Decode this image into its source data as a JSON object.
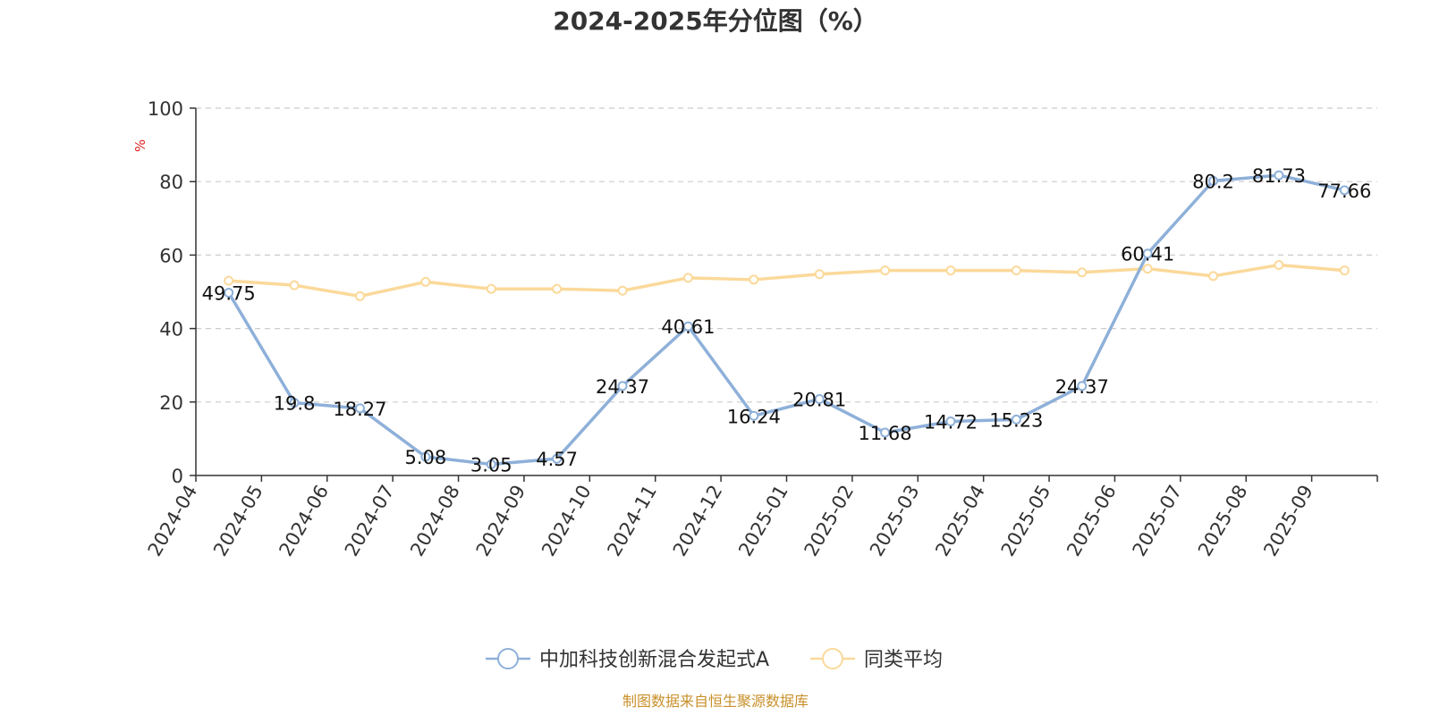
{
  "chart_data": {
    "type": "line",
    "title": "2024-2025年分位图（%）",
    "ylabel": "%",
    "xlabel": "",
    "ylim": [
      0,
      100
    ],
    "yticks": [
      0,
      20,
      40,
      60,
      80,
      100
    ],
    "grid": true,
    "legend_position": "bottom-center",
    "categories": [
      "2024-04",
      "2024-05",
      "2024-06",
      "2024-07",
      "2024-08",
      "2024-09",
      "2024-10",
      "2024-11",
      "2024-12",
      "2025-01",
      "2025-02",
      "2025-03",
      "2025-04",
      "2025-05",
      "2025-06",
      "2025-07",
      "2025-08",
      "2025-09"
    ],
    "series": [
      {
        "name": "中加科技创新混合发起式A",
        "color": "#8eb0d9",
        "show_labels": true,
        "values": [
          49.75,
          19.8,
          18.27,
          5.08,
          3.05,
          4.57,
          24.37,
          40.61,
          16.24,
          20.81,
          11.68,
          14.72,
          15.23,
          24.37,
          60.41,
          80.2,
          81.73,
          77.66
        ]
      },
      {
        "name": "同类平均",
        "color": "#fbd99a",
        "show_labels": false,
        "values": [
          53,
          51.8,
          48.8,
          52.7,
          50.8,
          50.8,
          50.3,
          53.8,
          53.3,
          54.8,
          55.8,
          55.8,
          55.8,
          55.3,
          56.3,
          54.3,
          57.3,
          55.8
        ]
      }
    ],
    "source": "制图数据来自恒生聚源数据库"
  }
}
